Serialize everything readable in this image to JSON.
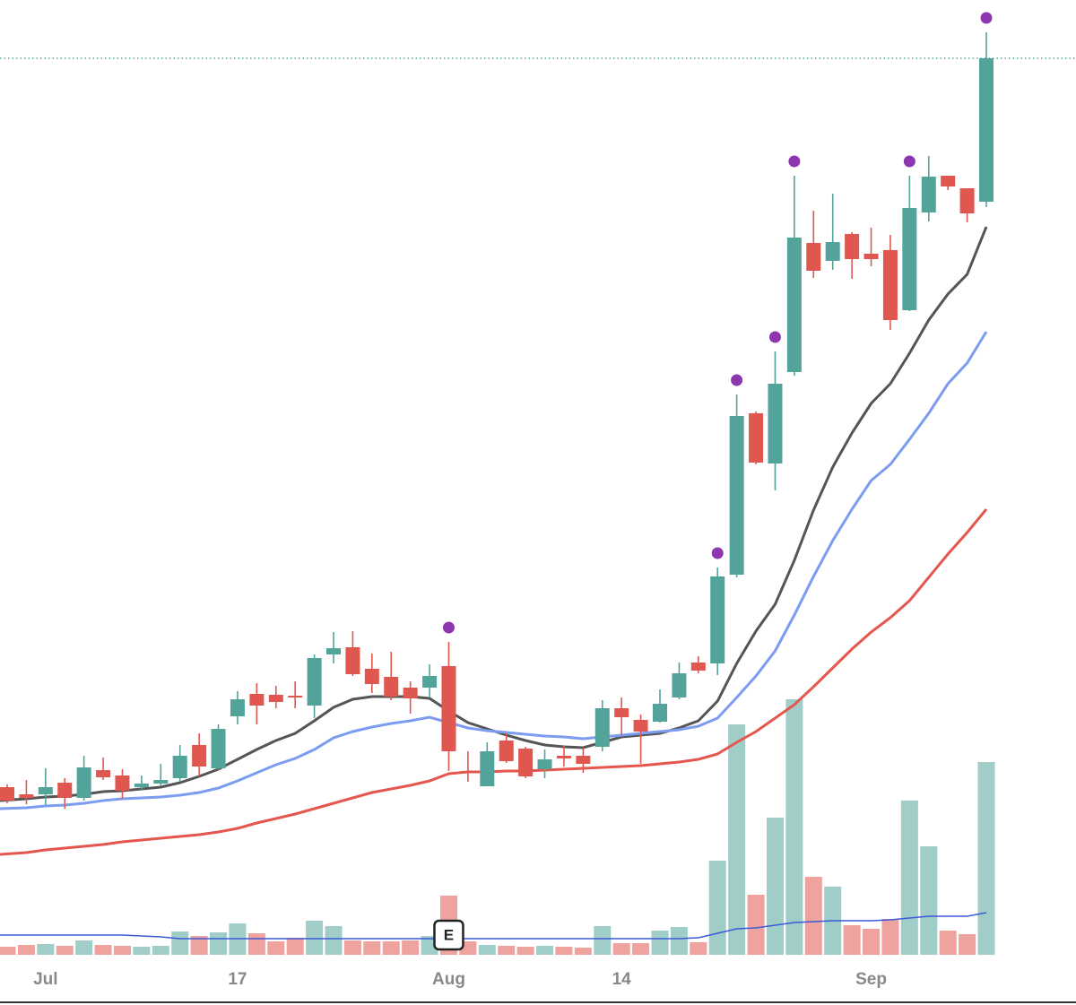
{
  "chart_data": {
    "type": "candlestick",
    "categories": [
      null,
      null,
      "Jul",
      null,
      null,
      null,
      null,
      null,
      null,
      null,
      null,
      null,
      "17",
      null,
      null,
      null,
      null,
      null,
      null,
      null,
      null,
      null,
      null,
      "Aug",
      null,
      null,
      null,
      null,
      null,
      null,
      null,
      null,
      "14",
      null,
      null,
      null,
      null,
      null,
      null,
      null,
      null,
      null,
      null,
      null,
      null,
      "Sep",
      null,
      null,
      null,
      null,
      null,
      null
    ],
    "open": [
      22.2,
      21.4,
      21.4,
      22.7,
      21.0,
      24.1,
      23.5,
      22.2,
      22.6,
      23.2,
      26.9,
      24.3,
      30.1,
      32.6,
      32.5,
      32.4,
      31.3,
      37.0,
      37.8,
      35.4,
      34.5,
      33.3,
      33.3,
      35.7,
      24.0,
      22.3,
      27.4,
      26.5,
      24.2,
      25.7,
      25.7,
      26.7,
      31.0,
      29.7,
      29.5,
      32.2,
      36.1,
      36.0,
      45.9,
      63.9,
      58.3,
      68.5,
      82.9,
      80.9,
      83.9,
      81.7,
      82.1,
      75.4,
      86.3,
      90.4,
      89.0,
      87.5
    ],
    "high": [
      22.5,
      23.0,
      24.3,
      23.2,
      25.7,
      25.5,
      24.2,
      23.5,
      24.8,
      26.9,
      28.2,
      29.2,
      32.9,
      33.8,
      33.5,
      34.0,
      37.0,
      39.5,
      39.6,
      37.1,
      37.3,
      34.0,
      35.9,
      38.4,
      26.2,
      27.2,
      28.2,
      26.7,
      26.4,
      26.8,
      26.6,
      31.9,
      32.2,
      30.3,
      33.1,
      36.1,
      36.8,
      46.7,
      66.0,
      64.1,
      70.8,
      90.4,
      86.5,
      88.4,
      84.1,
      84.6,
      83.8,
      90.4,
      92.6,
      90.4,
      89.0,
      106.4
    ],
    "low": [
      20.4,
      20.3,
      20.2,
      19.8,
      20.7,
      23.0,
      20.9,
      21.8,
      22.3,
      22.8,
      23.4,
      24.1,
      29.2,
      29.2,
      31.0,
      31.0,
      29.9,
      36.0,
      34.6,
      32.7,
      31.9,
      30.4,
      32.2,
      24.0,
      22.8,
      22.3,
      24.9,
      23.2,
      23.2,
      24.5,
      23.8,
      26.2,
      28.0,
      24.8,
      29.4,
      32.0,
      34.9,
      34.7,
      45.6,
      58.2,
      55.3,
      68.1,
      79.0,
      79.9,
      78.9,
      80.3,
      73.2,
      75.3,
      85.3,
      88.8,
      85.2,
      86.9
    ],
    "close": [
      20.7,
      21.0,
      22.2,
      21.0,
      24.4,
      23.3,
      21.8,
      22.6,
      23.0,
      25.7,
      24.5,
      28.7,
      32.0,
      31.3,
      31.7,
      32.2,
      36.6,
      37.7,
      34.8,
      33.7,
      32.3,
      32.1,
      34.6,
      26.2,
      23.8,
      26.2,
      25.1,
      23.4,
      25.3,
      25.4,
      24.8,
      31.0,
      30.0,
      28.4,
      31.5,
      34.9,
      35.2,
      45.7,
      63.6,
      58.4,
      67.2,
      83.5,
      79.8,
      83.0,
      81.1,
      81.1,
      74.3,
      86.8,
      90.3,
      89.2,
      86.2,
      103.5
    ],
    "up_color": "#52a49a",
    "down_color": "#e0574f",
    "ylim": [
      0,
      110
    ],
    "moving_averages": [
      {
        "color": "#555555",
        "values": [
          20.7,
          20.9,
          21.1,
          21.2,
          21.4,
          21.7,
          21.8,
          22.0,
          22.2,
          22.7,
          23.4,
          24.2,
          25.3,
          26.4,
          27.4,
          28.2,
          29.6,
          31.1,
          32.0,
          32.3,
          32.3,
          32.3,
          32.1,
          30.7,
          29.4,
          28.7,
          28.0,
          27.4,
          26.9,
          26.7,
          26.6,
          27.2,
          27.8,
          28.0,
          28.2,
          28.8,
          29.6,
          31.8,
          36.0,
          39.6,
          42.6,
          47.5,
          53.1,
          57.9,
          61.7,
          65.0,
          67.2,
          70.6,
          74.3,
          77.2,
          79.4,
          84.7
        ]
      },
      {
        "color": "#7b9cf0",
        "values": [
          19.8,
          19.9,
          20.1,
          20.2,
          20.4,
          20.7,
          20.9,
          21.0,
          21.1,
          21.3,
          21.6,
          22.1,
          22.9,
          23.8,
          24.7,
          25.4,
          26.4,
          27.7,
          28.4,
          28.9,
          29.3,
          29.6,
          30.0,
          29.4,
          28.8,
          28.5,
          28.3,
          28.1,
          27.9,
          27.8,
          27.6,
          27.8,
          28.0,
          28.2,
          28.4,
          28.6,
          29.0,
          29.9,
          32.2,
          34.6,
          37.4,
          41.4,
          45.7,
          49.7,
          53.2,
          56.4,
          58.2,
          61.0,
          63.9,
          67.2,
          69.5,
          73.0
        ]
      },
      {
        "color": "#e5564f",
        "values": [
          14.7,
          14.9,
          15.2,
          15.4,
          15.6,
          15.8,
          16.1,
          16.3,
          16.5,
          16.7,
          16.9,
          17.2,
          17.6,
          18.2,
          18.7,
          19.2,
          19.8,
          20.4,
          21.0,
          21.6,
          22.0,
          22.4,
          22.9,
          23.7,
          23.9,
          23.9,
          24.0,
          24.0,
          24.1,
          24.2,
          24.3,
          24.4,
          24.5,
          24.6,
          24.8,
          25.0,
          25.3,
          25.9,
          27.2,
          28.4,
          29.9,
          31.4,
          33.4,
          35.5,
          37.6,
          39.5,
          41.1,
          43.0,
          45.6,
          48.2,
          50.6,
          53.2
        ]
      }
    ],
    "volume": {
      "values": [
        9,
        11,
        12,
        10,
        16,
        11,
        10,
        9,
        10,
        26,
        21,
        25,
        35,
        24,
        15,
        19,
        38,
        32,
        16,
        15,
        15,
        16,
        21,
        66,
        15,
        11,
        10,
        9,
        10,
        9,
        8,
        32,
        13,
        13,
        27,
        31,
        14,
        105,
        257,
        67,
        153,
        285,
        87,
        76,
        33,
        29,
        40,
        172,
        121,
        27,
        23,
        215
      ],
      "ylim": [
        0,
        300
      ],
      "ma": {
        "color": "#3a5bd9",
        "values": [
          22,
          22,
          22,
          22,
          22,
          22,
          22,
          21,
          20,
          18,
          18,
          18,
          18,
          18,
          18,
          18,
          18,
          18,
          18,
          18,
          18,
          18,
          18,
          18,
          18,
          18,
          18,
          18,
          18,
          18,
          18,
          18,
          18,
          18,
          18,
          18,
          19,
          24,
          29,
          30,
          33,
          36,
          37,
          38,
          38,
          38,
          39,
          41,
          43,
          43,
          43,
          47
        ]
      }
    },
    "signals": {
      "color": "#8e35b0",
      "indices": [
        23,
        37,
        38,
        40,
        41,
        47,
        51
      ]
    },
    "events": [
      {
        "index": 23,
        "label": "E"
      }
    ],
    "price_line": {
      "color": "#2f9a7a"
    }
  }
}
